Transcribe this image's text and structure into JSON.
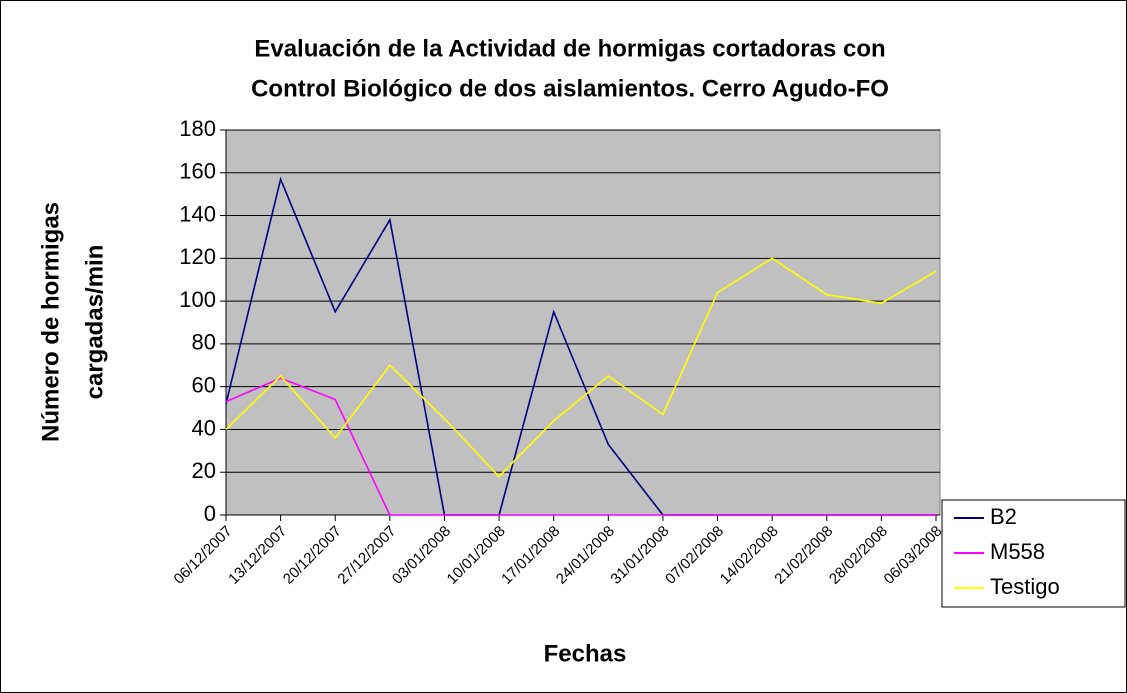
{
  "chart_data": {
    "type": "line",
    "title": [
      "Evaluación de la Actividad de hormigas cortadoras con",
      "Control Biológico de dos aislamientos. Cerro Agudo-FO"
    ],
    "x_label": "Fechas",
    "y_label": [
      "Número de hormigas",
      "cargadas/min"
    ],
    "categories": [
      "06/12/2007",
      "13/12/2007",
      "20/12/2007",
      "27/12/2007",
      "03/01/2008",
      "10/01/2008",
      "17/01/2008",
      "24/01/2008",
      "31/01/2008",
      "07/02/2008",
      "14/02/2008",
      "21/02/2008",
      "28/02/2008",
      "06/03/2008"
    ],
    "series": [
      {
        "name": "B2",
        "color": "#000080",
        "values": [
          52,
          157,
          95,
          138,
          0,
          0,
          95,
          33,
          0,
          0,
          0,
          0,
          0,
          0
        ]
      },
      {
        "name": "M558",
        "color": "#ff00ff",
        "values": [
          53,
          64,
          54,
          0,
          0,
          0,
          0,
          0,
          0,
          0,
          0,
          0,
          0,
          0
        ]
      },
      {
        "name": "Testigo",
        "color": "#ffff00",
        "values": [
          40,
          65,
          36,
          70,
          45,
          18,
          44,
          65,
          47,
          104,
          120,
          103,
          99,
          114
        ]
      }
    ],
    "ylim": [
      0,
      180
    ],
    "yticks": [
      0,
      20,
      40,
      60,
      80,
      100,
      120,
      140,
      160,
      180
    ],
    "grid": true,
    "plot_background": "#c0c0c0",
    "legend": "right"
  }
}
